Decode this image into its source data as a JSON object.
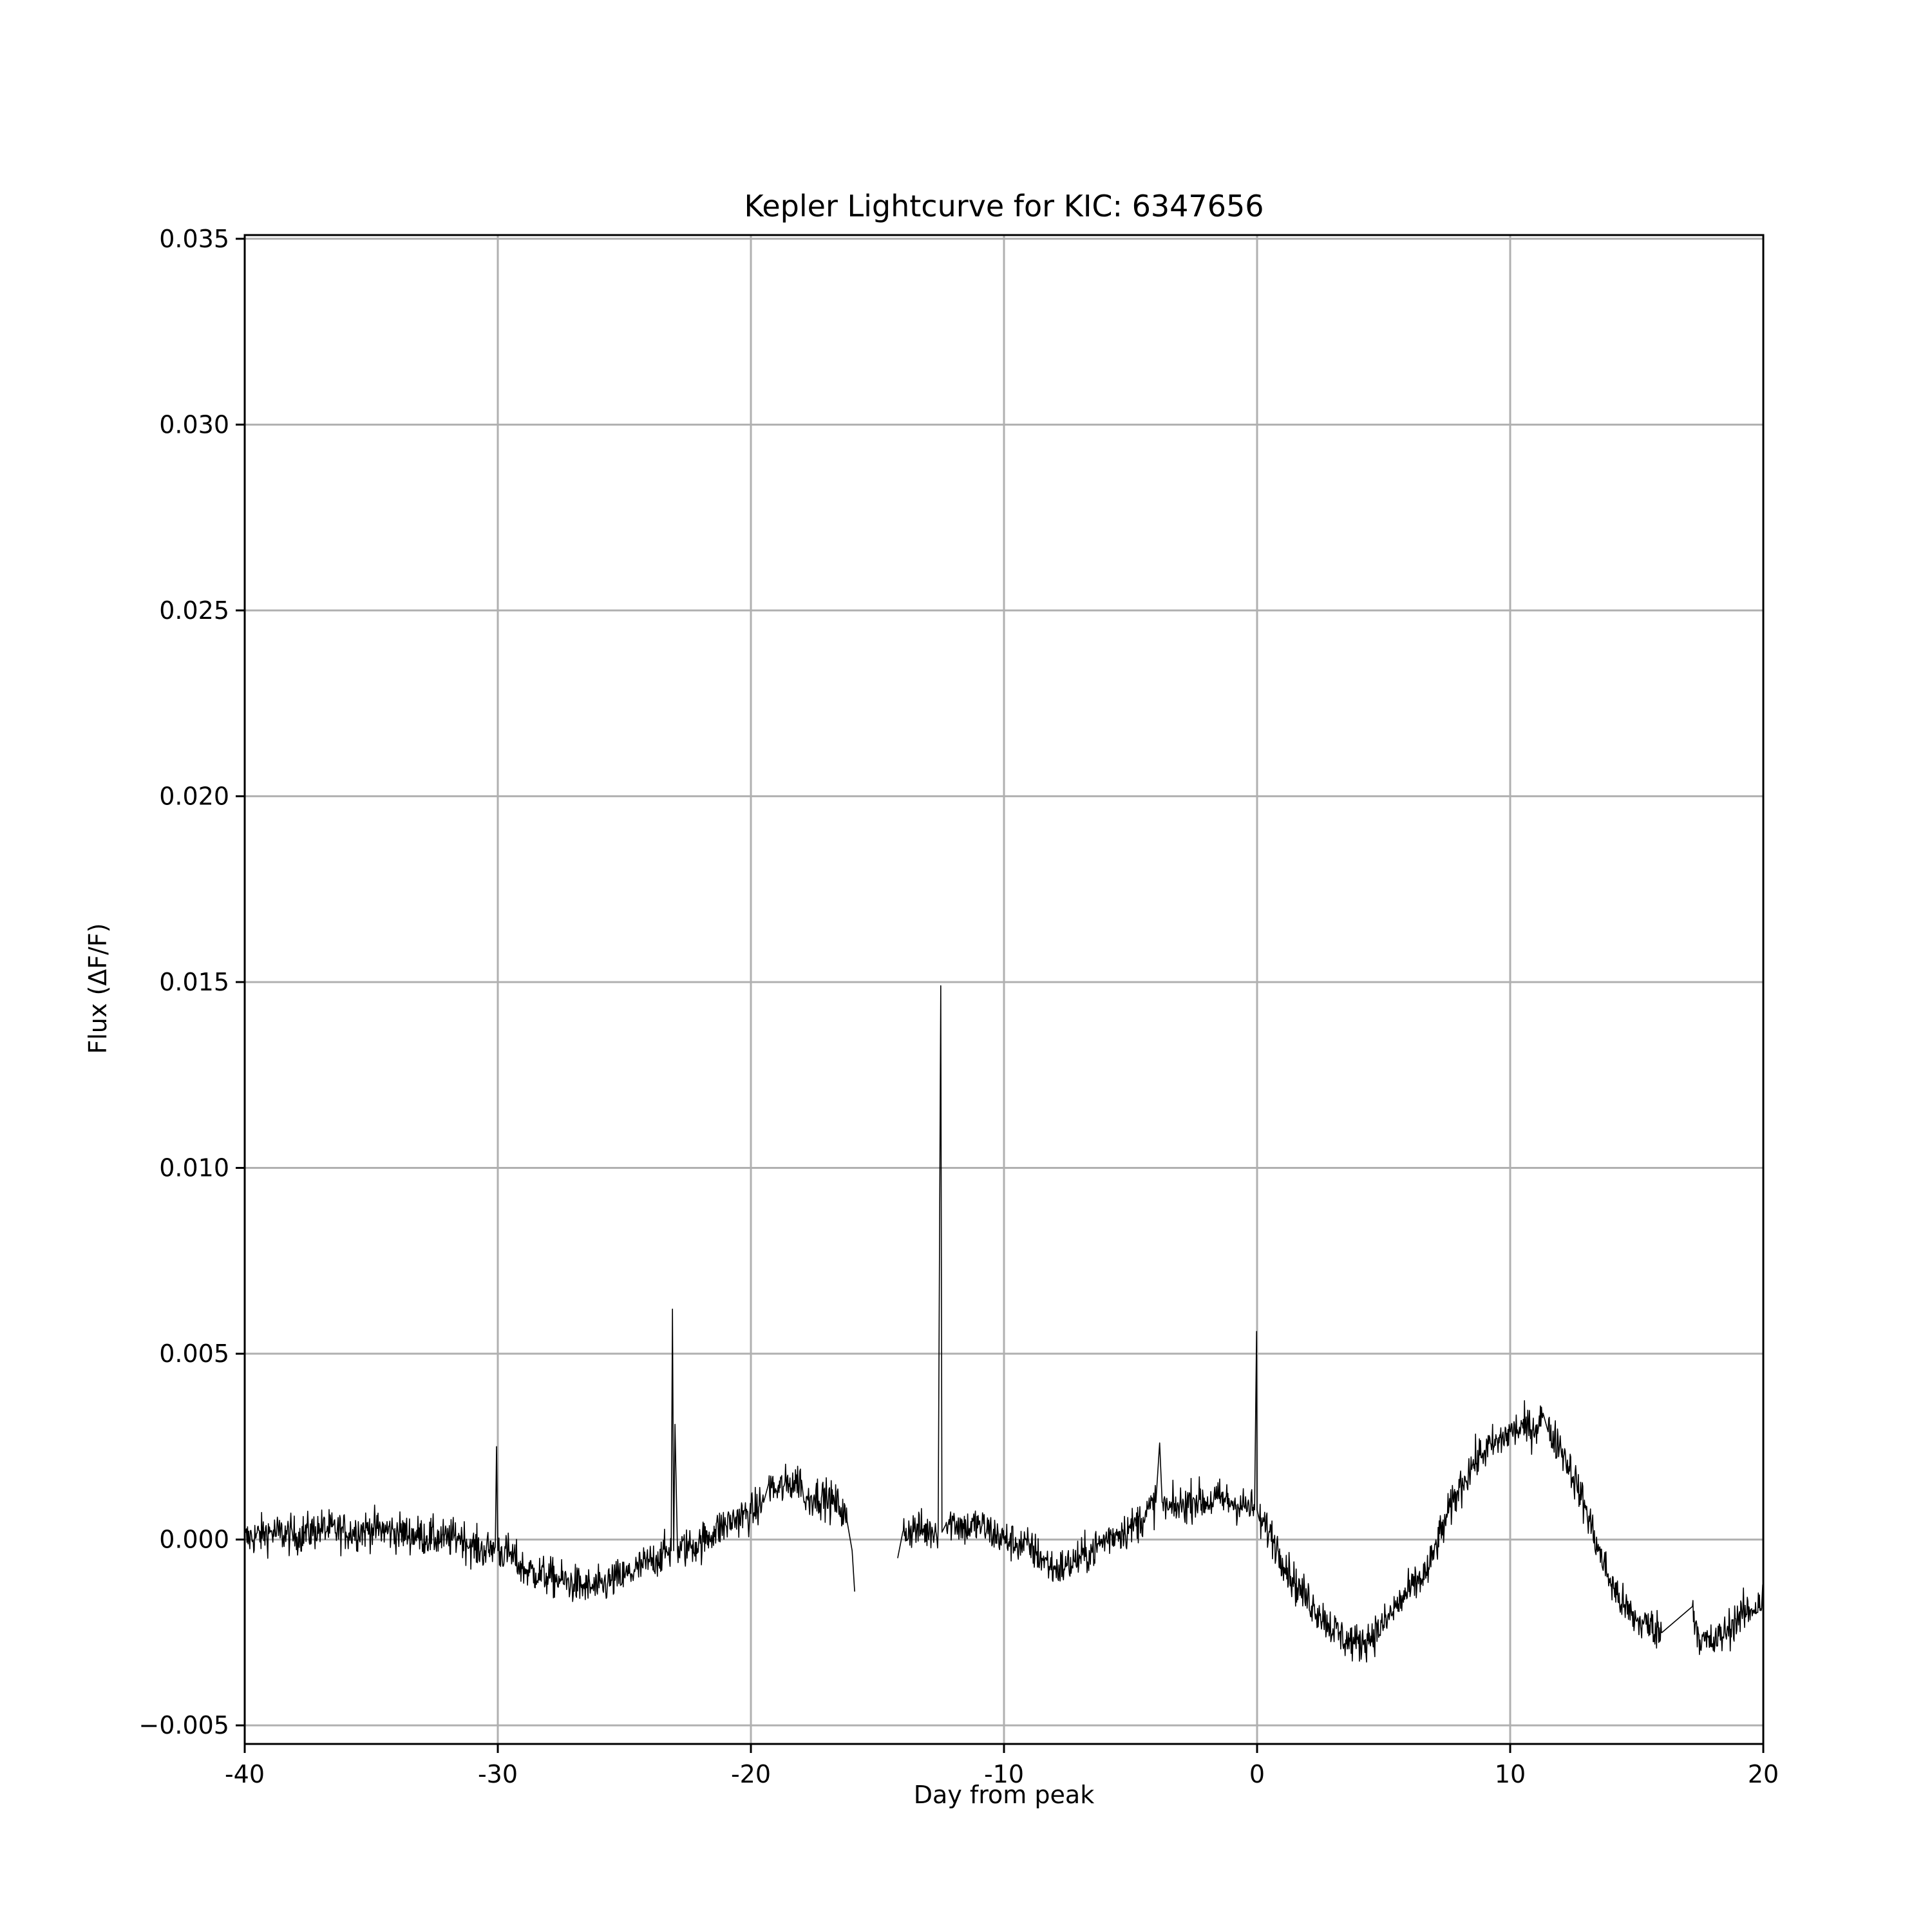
{
  "chart_data": {
    "type": "line",
    "title": "Kepler Lightcurve for KIC: 6347656",
    "xlabel": "Day from peak",
    "ylabel": "Flux (ΔF/F)",
    "xlim": [
      -40,
      20
    ],
    "ylim": [
      -0.0055,
      0.0351
    ],
    "x_ticks": [
      -40,
      -30,
      -20,
      -10,
      0,
      10,
      20
    ],
    "x_tick_labels": [
      "-40",
      "-30",
      "-20",
      "-10",
      "0",
      "10",
      "20"
    ],
    "y_ticks": [
      -0.005,
      0.0,
      0.005,
      0.01,
      0.015,
      0.02,
      0.025,
      0.03,
      0.035
    ],
    "y_tick_labels": [
      "−0.005",
      "0.000",
      "0.005",
      "0.010",
      "0.015",
      "0.020",
      "0.025",
      "0.030",
      "0.035"
    ],
    "grid": true,
    "line_color": "#000000",
    "series": [
      {
        "x": [
          -40,
          -39,
          -38,
          -37,
          -36,
          -35,
          -34,
          -33,
          -32,
          -31.5,
          -31,
          -30.5,
          -30.1,
          -30.05,
          -30,
          -29.5,
          -29,
          -28.5,
          -28,
          -27.5,
          -27,
          -26.5,
          -26,
          -25.5,
          -25,
          -24.5,
          -24,
          -23.5,
          -23.15,
          -23.1,
          -23.05,
          -23,
          -22.9,
          -22.5,
          -22,
          -21.5,
          -21,
          -20.5,
          -20,
          -19.5,
          -19.3,
          -19,
          -18.5,
          -18,
          -17.9,
          -17.5,
          -17,
          -16.5,
          -16.2,
          -16,
          -15.9
        ],
        "y": [
          0.0,
          0.0002,
          0.0001,
          0.0003,
          0.0002,
          0.0003,
          0.0002,
          0.0001,
          0.0,
          0.0001,
          -0.0002,
          -0.0003,
          -0.0002,
          0.0025,
          -0.0003,
          -0.0004,
          -0.0008,
          -0.0009,
          -0.001,
          -0.0011,
          -0.0012,
          -0.0013,
          -0.0013,
          -0.0011,
          -0.001,
          -0.0008,
          -0.0006,
          -0.0004,
          -0.0003,
          0.0062,
          -0.0003,
          0.0031,
          -0.0003,
          -0.0002,
          -0.0001,
          0.0002,
          0.0004,
          0.0006,
          0.0007,
          0.001,
          0.0015,
          0.0013,
          0.0015,
          0.0016,
          0.001,
          0.0012,
          0.0011,
          0.0009,
          0.0005,
          -0.0003,
          -0.0014
        ]
      },
      {
        "x": [
          -14.2,
          -14,
          -13.5,
          -13,
          -12.6,
          -12.5,
          -12.45,
          -12.3,
          -12,
          -11.5,
          -11,
          -10.5,
          -10,
          -9.5,
          -9,
          -8.5,
          -8,
          -7.5,
          -7,
          -6.5,
          -6,
          -5.5,
          -5,
          -4.5,
          -4,
          -3.85,
          -3.75,
          -3.5,
          -3,
          -2.5,
          -2,
          -1.5,
          -1,
          -0.5,
          -0.1,
          -0.02,
          0,
          0.1,
          0.5,
          1,
          1.5,
          2,
          2.5,
          3,
          3.5,
          4,
          4.5,
          5,
          5.5,
          6,
          6.8,
          7,
          7.5,
          8,
          8.5,
          9,
          9.5,
          10,
          10.5,
          11,
          11.3,
          11.5,
          12,
          12.5,
          13,
          13.5,
          14,
          14.5,
          15,
          15.5,
          16,
          17.2,
          17.5,
          18,
          18.5,
          19,
          19.5,
          20
        ],
        "y": [
          -0.0005,
          0.0002,
          0.0003,
          0.0002,
          0.0003,
          0.0149,
          0.0002,
          0.0004,
          0.0005,
          0.0003,
          0.0004,
          0.0002,
          0.0,
          -0.0001,
          -0.0002,
          -0.0005,
          -0.0008,
          -0.0007,
          -0.0005,
          -0.0003,
          0.0,
          0.0002,
          0.0003,
          0.0006,
          0.001,
          0.0026,
          0.001,
          0.0008,
          0.0009,
          0.0011,
          0.001,
          0.0011,
          0.001,
          0.0009,
          0.0008,
          0.0056,
          0.0008,
          0.0005,
          0.0002,
          -0.0005,
          -0.0012,
          -0.0016,
          -0.002,
          -0.0024,
          -0.0027,
          -0.0028,
          -0.0026,
          -0.0023,
          -0.0018,
          -0.0014,
          -0.0008,
          -0.0003,
          0.0006,
          0.0014,
          0.002,
          0.0024,
          0.0026,
          0.0029,
          0.003,
          0.003,
          0.0034,
          0.0029,
          0.0025,
          0.0017,
          0.0008,
          -0.0003,
          -0.0012,
          -0.0018,
          -0.0022,
          -0.0023,
          -0.0025,
          -0.0018,
          -0.0027,
          -0.0028,
          -0.0025,
          -0.0021,
          -0.0019,
          -0.0016
        ]
      }
    ]
  }
}
